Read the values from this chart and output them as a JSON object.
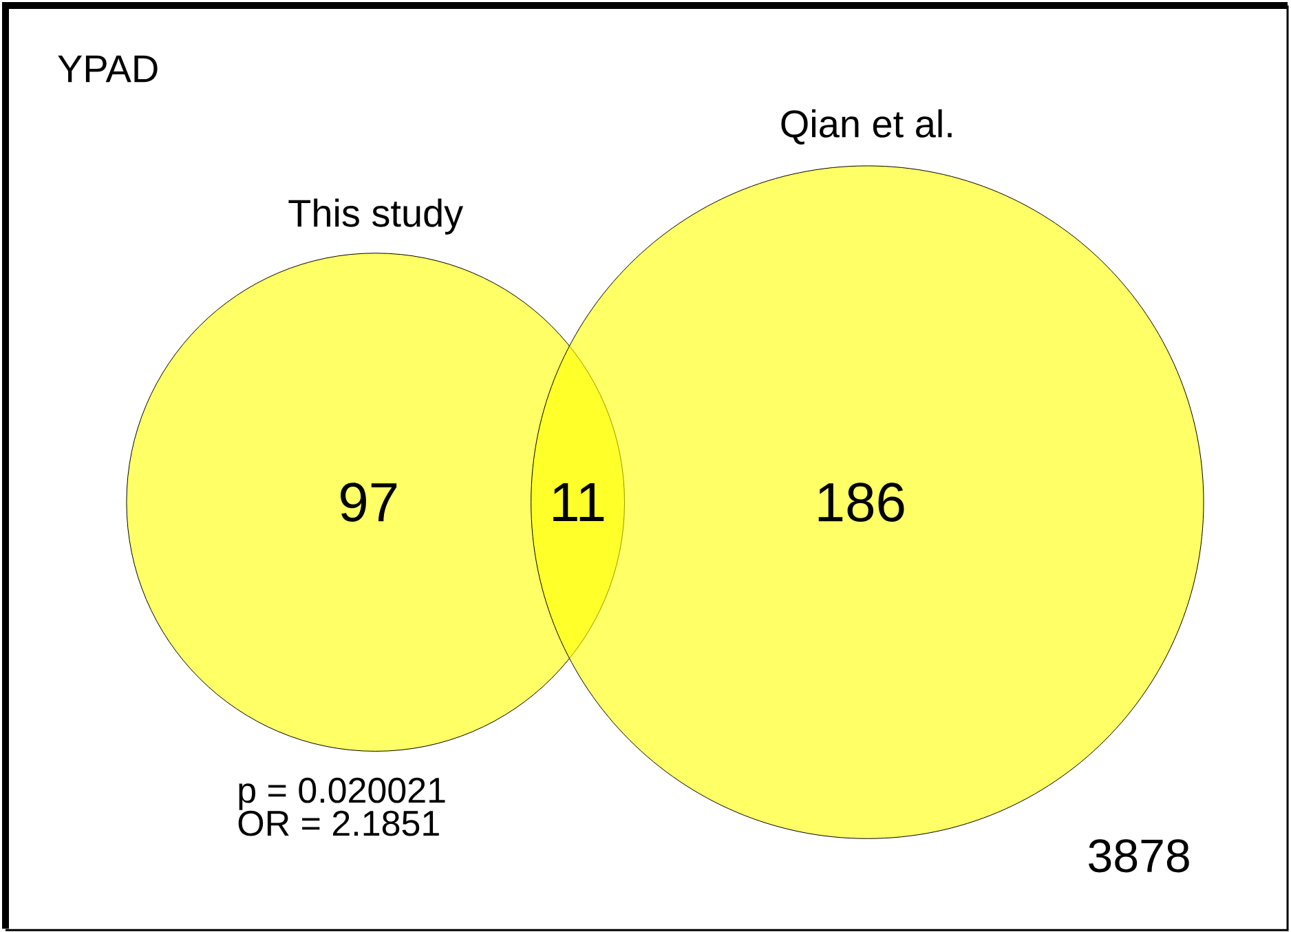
{
  "chart_data": {
    "type": "other",
    "title": "YPAD",
    "categories": [
      "This study",
      null,
      "Qian et al.",
      null
    ],
    "values": [
      97,
      11,
      186,
      3878
    ],
    "color": "#ffff00",
    "data_labels": true,
    "annotations": [
      "p = 0.020021",
      "OR = 2.1851"
    ]
  }
}
